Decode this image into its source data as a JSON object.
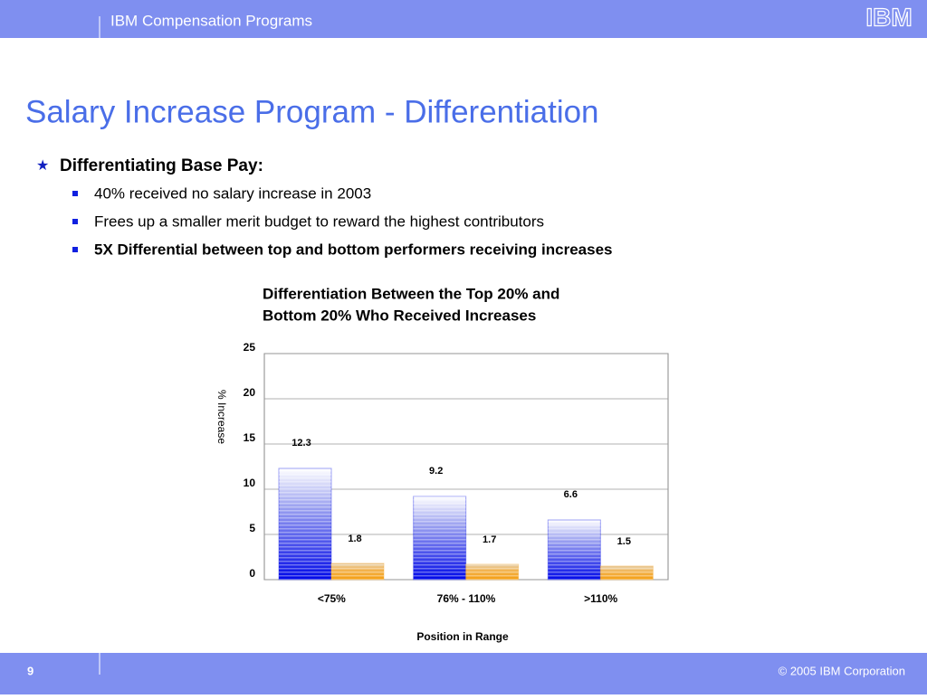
{
  "header": {
    "title": "IBM Compensation Programs",
    "logo": "IBM"
  },
  "slide": {
    "title": "Salary Increase Program - Differentiation",
    "bullet": "Differentiating Base Pay:",
    "subbullets": [
      "40% received no salary increase in 2003",
      "Frees up a smaller merit budget to reward the highest contributors",
      "5X Differential between top and bottom performers receiving increases"
    ]
  },
  "chart_data": {
    "type": "bar",
    "title": [
      "Differentiation Between the Top 20% and",
      "Bottom 20% Who Received Increases"
    ],
    "y_label": "% Increase",
    "x_label": "Position in Range",
    "categories": [
      "<75%",
      "76% - 110%",
      ">110%"
    ],
    "series": [
      {
        "color": "#0a14e6",
        "values": [
          12.3,
          9.2,
          6.6
        ]
      },
      {
        "color": "#f5a21e",
        "values": [
          1.8,
          1.7,
          1.5
        ]
      }
    ],
    "ylim": [
      0,
      25
    ],
    "yticks": [
      0,
      5,
      10,
      15,
      20,
      25
    ],
    "grid": true
  },
  "footer": {
    "page": "9",
    "copyright": "© 2005 IBM Corporation"
  }
}
